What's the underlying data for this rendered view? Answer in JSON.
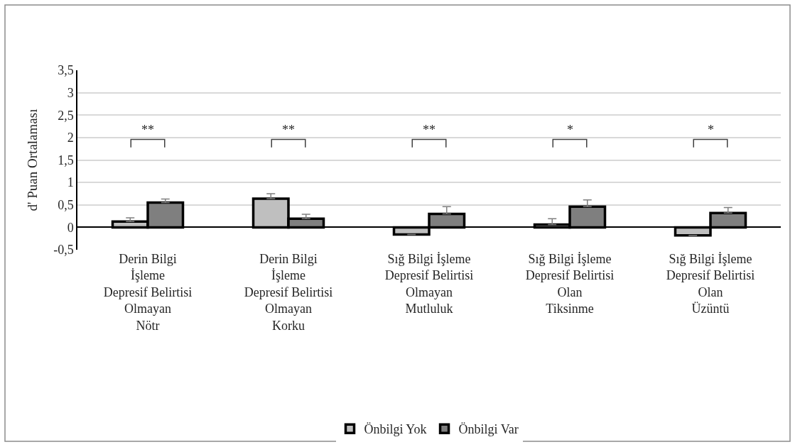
{
  "chart_data": {
    "type": "bar",
    "categories": [
      "Derin Bilgi İşleme\nDepresif Belirtisi Olmayan\nNötr",
      "Derin Bilgi İşleme\nDepresif Belirtisi Olmayan\nKorku",
      "Sığ Bilgi İşleme\nDepresif Belirtisi Olmayan\nMutluluk",
      "Sığ Bilgi İşleme\nDepresif Belirtisi Olan\nTiksinme",
      "Sığ Bilgi İşleme\nDepresif Belirtisi Olan\nÜzüntü"
    ],
    "series": [
      {
        "name": "Önbilgi Yok",
        "color": "#bfbfbf",
        "values": [
          0.13,
          0.64,
          -0.16,
          0.06,
          -0.18
        ],
        "errors": [
          [
            0.13,
            0.21
          ],
          [
            0.64,
            0.75
          ],
          null,
          [
            0.06,
            0.19
          ],
          null
        ]
      },
      {
        "name": "Önbilgi Var",
        "color": "#7f7f7f",
        "values": [
          0.55,
          0.19,
          0.3,
          0.46,
          0.32
        ],
        "errors": [
          [
            0.55,
            0.63
          ],
          [
            0.19,
            0.29
          ],
          [
            0.3,
            0.46
          ],
          [
            0.46,
            0.61
          ],
          [
            0.32,
            0.44
          ]
        ]
      }
    ],
    "ylabel": "d' Puan Ortalaması",
    "ylim": [
      -0.5,
      3.5
    ],
    "yticks": [
      {
        "value": -0.5,
        "label": "-0,5"
      },
      0,
      {
        "value": 0.5,
        "label": "0,5"
      },
      1,
      {
        "value": 1.5,
        "label": "1,5"
      },
      2,
      {
        "value": 2.5,
        "label": "2,5"
      },
      3,
      {
        "value": 3.5,
        "label": "3,5"
      }
    ],
    "grid": "y",
    "legend": "bottom",
    "annotations": [
      "**",
      "**",
      "**",
      "*",
      "*"
    ]
  }
}
